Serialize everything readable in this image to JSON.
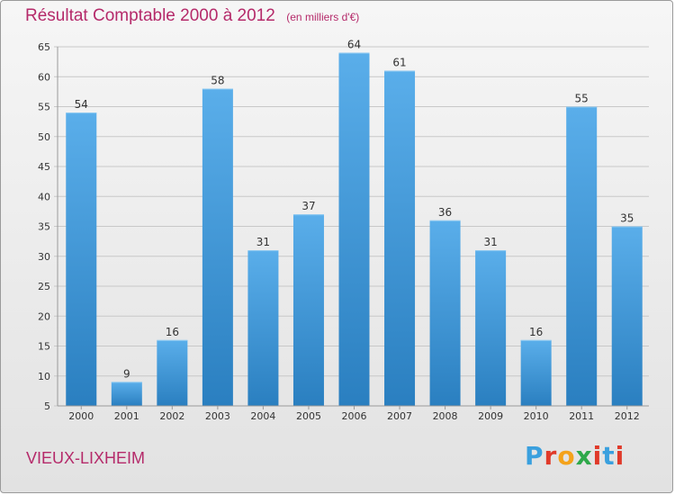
{
  "colors": {
    "title": "#b52a6a",
    "bar_light": "#5aaeea",
    "bar_dark": "#2a7fc0",
    "grid": "#c8c8c8",
    "text": "#333333"
  },
  "logo": {
    "text": "Proxiti",
    "letter_colors": [
      "#3aa0de",
      "#e03a2a",
      "#f4a21a",
      "#2ea84a",
      "#e03a2a",
      "#3aa0de",
      "#e03a2a"
    ]
  },
  "chart_data": {
    "type": "bar",
    "title": "Résultat Comptable 2000 à 2012",
    "subtitle": "(en milliers d'€)",
    "location": "VIEUX-LIXHEIM",
    "categories": [
      "2000",
      "2001",
      "2002",
      "2003",
      "2004",
      "2005",
      "2006",
      "2007",
      "2008",
      "2009",
      "2010",
      "2011",
      "2012"
    ],
    "values": [
      54,
      9,
      16,
      58,
      31,
      37,
      64,
      61,
      36,
      31,
      16,
      55,
      35
    ],
    "data_labels": [
      "54",
      "9",
      "16",
      "58",
      "31",
      "37",
      "64",
      "61",
      "36",
      "31",
      "16",
      "55",
      "35"
    ],
    "yticks": [
      "5",
      "10",
      "15",
      "20",
      "25",
      "30",
      "35",
      "40",
      "45",
      "50",
      "55",
      "60",
      "65"
    ],
    "ylim": [
      5,
      65
    ],
    "xlabel": "",
    "ylabel": "",
    "grid": true,
    "legend": "none"
  }
}
